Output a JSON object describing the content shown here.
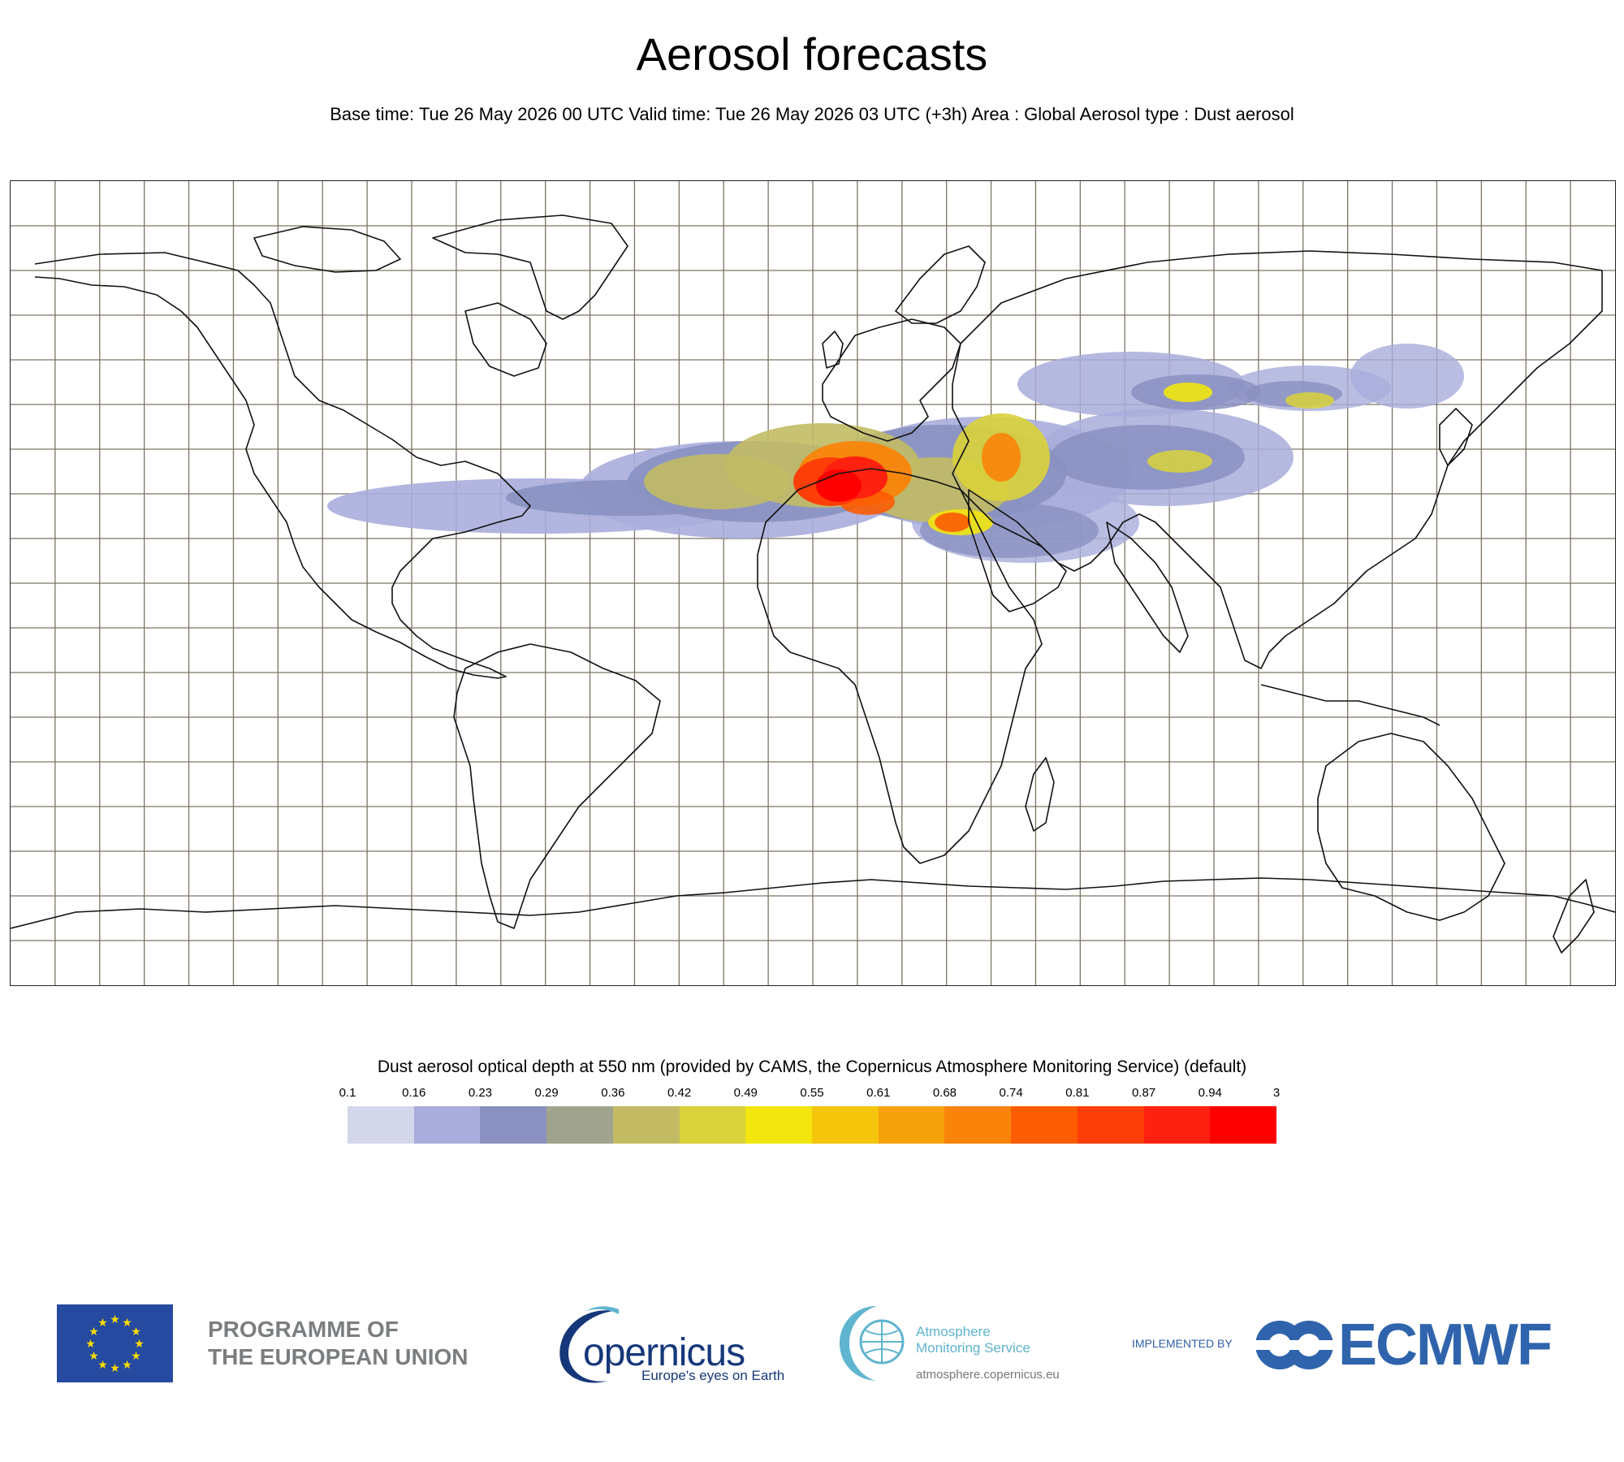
{
  "title": "Aerosol forecasts",
  "subtitle": "Base time: Tue 26 May 2026 00 UTC Valid time: Tue 26 May 2026 03 UTC (+3h) Area : Global Aerosol type : Dust aerosol",
  "map": {
    "projection": "equirectangular",
    "lon_range": [
      -180,
      180
    ],
    "lat_range": [
      -90,
      90
    ],
    "gridlines": true,
    "field": "dust aerosol optical depth",
    "regions": [
      {
        "name": "Sahara core",
        "level": "0.94-3"
      },
      {
        "name": "Saharan Atlantic plume",
        "level": "0.16-0.49"
      },
      {
        "name": "Arabian Peninsula",
        "level": "0.42-0.81"
      },
      {
        "name": "Taklamakan / Gobi",
        "level": "0.23-0.55"
      },
      {
        "name": "Indo-Gangetic Plain",
        "level": "0.16-0.49"
      }
    ]
  },
  "legend": {
    "title": "Dust aerosol optical depth at 550 nm (provided by CAMS, the Copernicus Atmosphere Monitoring Service) (default)",
    "ticks": [
      "0.1",
      "0.16",
      "0.23",
      "0.29",
      "0.36",
      "0.42",
      "0.49",
      "0.55",
      "0.61",
      "0.68",
      "0.74",
      "0.81",
      "0.87",
      "0.94",
      "3"
    ],
    "colors": [
      "#d4d6ea",
      "#a8addb",
      "#8a91c1",
      "#a0a48e",
      "#c2bb64",
      "#d9d23a",
      "#f2e60e",
      "#f5c50c",
      "#f5a20c",
      "#f98409",
      "#fc5c04",
      "#fd3e08",
      "#ff210f",
      "#ff0000"
    ]
  },
  "footer": {
    "eu_line1": "PROGRAMME OF",
    "eu_line2": "THE EUROPEAN UNION",
    "copernicus_word": "opernicus",
    "copernicus_tagline": "Europe's eyes on Earth",
    "atmosphere_line1": "Atmosphere",
    "atmosphere_line2": "Monitoring Service",
    "atmosphere_url": "atmosphere.copernicus.eu",
    "implemented_by": "IMPLEMENTED BY",
    "ecmwf": "ECMWF",
    "colors": {
      "eu_blue": "#254a9f",
      "eu_star": "#ffdd00",
      "copernicus_navy": "#16387a",
      "atmosphere_teal": "#5fb4cf",
      "ecmwf_blue": "#2f64ad"
    }
  }
}
